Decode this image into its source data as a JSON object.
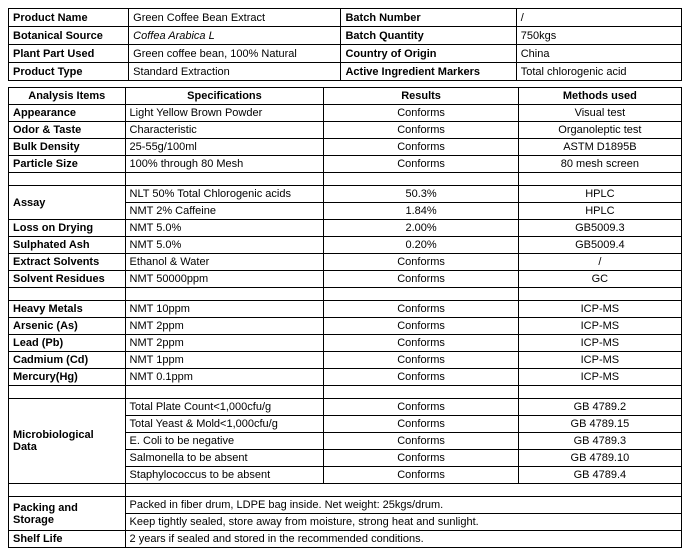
{
  "top": {
    "rows": [
      {
        "l1": "Product Name",
        "v1": "Green Coffee Bean Extract",
        "l2": "Batch Number",
        "v2": "/"
      },
      {
        "l1": "Botanical Source",
        "v1": "Coffea Arabica L",
        "v1_italic": true,
        "l2": "Batch Quantity",
        "v2": "750kgs"
      },
      {
        "l1": "Plant Part Used",
        "v1": "Green coffee bean, 100% Natural",
        "l2": "Country of Origin",
        "v2": "China"
      },
      {
        "l1": "Product Type",
        "v1": "Standard Extraction",
        "l2": "Active Ingredient Markers",
        "v2": "Total chlorogenic acid"
      }
    ]
  },
  "analysis": {
    "headers": [
      "Analysis Items",
      "Specifications",
      "Results",
      "Methods used"
    ],
    "g1": [
      {
        "item": "Appearance",
        "spec": "Light Yellow Brown Powder",
        "result": "Conforms",
        "method": "Visual test"
      },
      {
        "item": "Odor & Taste",
        "spec": "Characteristic",
        "result": "Conforms",
        "method": "Organoleptic test"
      },
      {
        "item": "Bulk Density",
        "spec": "25-55g/100ml",
        "result": "Conforms",
        "method": "ASTM D1895B"
      },
      {
        "item": "Particle Size",
        "spec": "100% through 80 Mesh",
        "result": "Conforms",
        "method": "80 mesh screen"
      }
    ],
    "g2": [
      {
        "item": "Assay",
        "spec": "NLT 50% Total Chlorogenic acids",
        "result": "50.3%",
        "method": "HPLC",
        "rowspan": 2
      },
      {
        "spec": "NMT 2% Caffeine",
        "result": "1.84%",
        "method": "HPLC"
      },
      {
        "item": "Loss on Drying",
        "spec": "NMT 5.0%",
        "result": "2.00%",
        "method": "GB5009.3"
      },
      {
        "item": "Sulphated Ash",
        "spec": "NMT 5.0%",
        "result": "0.20%",
        "method": "GB5009.4"
      },
      {
        "item": "Extract Solvents",
        "spec": "Ethanol & Water",
        "result": "Conforms",
        "method": "/"
      },
      {
        "item": "Solvent Residues",
        "spec": "NMT 50000ppm",
        "result": "Conforms",
        "method": "GC"
      }
    ],
    "g3": [
      {
        "item": "Heavy Metals",
        "spec": "NMT 10ppm",
        "result": "Conforms",
        "method": "ICP-MS"
      },
      {
        "item": "Arsenic (As)",
        "spec": "NMT 2ppm",
        "result": "Conforms",
        "method": "ICP-MS"
      },
      {
        "item": "Lead (Pb)",
        "spec": "NMT 2ppm",
        "result": "Conforms",
        "method": "ICP-MS"
      },
      {
        "item": "Cadmium (Cd)",
        "spec": "NMT 1ppm",
        "result": "Conforms",
        "method": "ICP-MS"
      },
      {
        "item": "Mercury(Hg)",
        "spec": "NMT 0.1ppm",
        "result": "Conforms",
        "method": "ICP-MS"
      }
    ],
    "g4": [
      {
        "item": "Microbiological Data",
        "spec": "Total Plate Count<1,000cfu/g",
        "result": "Conforms",
        "method": "GB 4789.2",
        "rowspan": 5
      },
      {
        "spec": "Total Yeast & Mold<1,000cfu/g",
        "result": "Conforms",
        "method": "GB 4789.15"
      },
      {
        "spec": "E. Coli to be negative",
        "result": "Conforms",
        "method": "GB 4789.3"
      },
      {
        "spec": "Salmonella to be absent",
        "result": "Conforms",
        "method": "GB 4789.10"
      },
      {
        "spec": "Staphylococcus to be absent",
        "result": "Conforms",
        "method": "GB 4789.4"
      }
    ],
    "g5": [
      {
        "item": "Packing and Storage",
        "text": "Packed in fiber drum, LDPE bag inside. Net weight: 25kgs/drum.",
        "rowspan": 2
      },
      {
        "text": "Keep tightly sealed, store away from moisture, strong heat and sunlight."
      },
      {
        "item": "Shelf Life",
        "text": "2 years if sealed and stored in the recommended conditions."
      }
    ]
  }
}
